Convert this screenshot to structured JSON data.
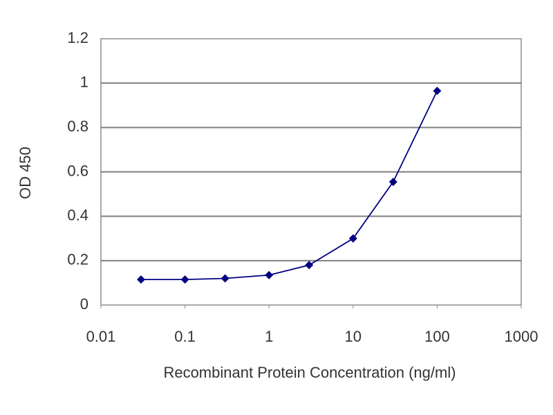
{
  "chart_data": {
    "type": "line",
    "x_label": "Recombinant Protein Concentration (ng/ml)",
    "y_label": "OD 450",
    "x": [
      0.03,
      0.1,
      0.3,
      1,
      3,
      10,
      30,
      100
    ],
    "series": [
      {
        "color": "#000080",
        "values": [
          0.115,
          0.115,
          0.12,
          0.135,
          0.18,
          0.3,
          0.555,
          0.965
        ]
      }
    ],
    "xscale": "log",
    "xlim": [
      0.01,
      1000
    ],
    "xticks": [
      0.01,
      0.1,
      1,
      10,
      100,
      1000
    ],
    "ylim": [
      0,
      1.2
    ],
    "yticks": [
      0,
      0.2,
      0.4,
      0.6,
      0.8,
      1,
      1.2
    ],
    "grid": true
  }
}
